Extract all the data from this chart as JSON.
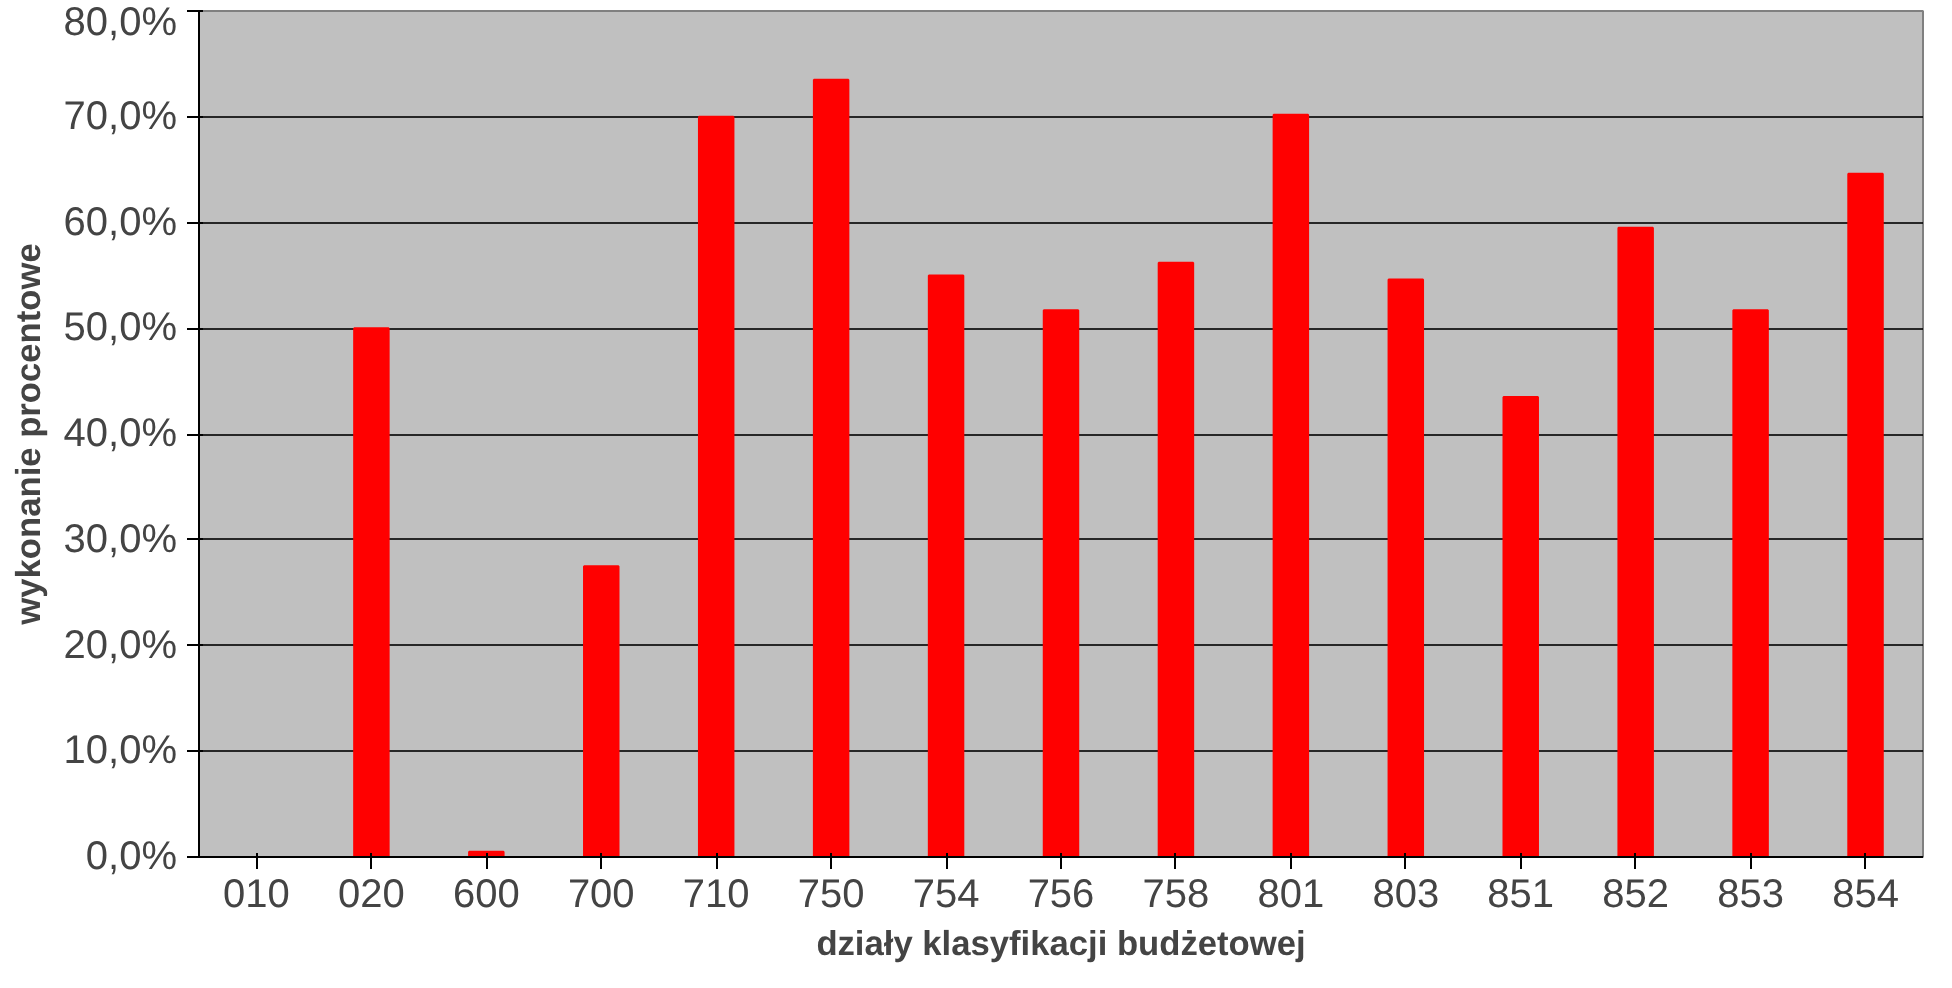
{
  "chart_data": {
    "type": "bar",
    "xlabel": "działy klasyfikacji budżetowej",
    "ylabel": "wykonanie procentowe",
    "categories": [
      "010",
      "020",
      "600",
      "700",
      "710",
      "750",
      "754",
      "756",
      "758",
      "801",
      "803",
      "851",
      "852",
      "853",
      "854"
    ],
    "series": [
      {
        "color": "#ff0000",
        "values": [
          0,
          50,
          0.5,
          27.5,
          70,
          73.5,
          55,
          51.7,
          56.2,
          70.2,
          54.6,
          43.5,
          59.5,
          51.7,
          64.6
        ]
      }
    ],
    "ylim": [
      0,
      80
    ],
    "yticks": [
      {
        "value": 0,
        "label": "0,0%"
      },
      {
        "value": 10,
        "label": "10,0%"
      },
      {
        "value": 20,
        "label": "20,0%"
      },
      {
        "value": 30,
        "label": "30,0%"
      },
      {
        "value": 40,
        "label": "40,0%"
      },
      {
        "value": 50,
        "label": "50,0%"
      },
      {
        "value": 60,
        "label": "60,0%"
      },
      {
        "value": 70,
        "label": "70,0%"
      },
      {
        "value": 80,
        "label": "80,0%"
      }
    ],
    "grid": "y"
  }
}
